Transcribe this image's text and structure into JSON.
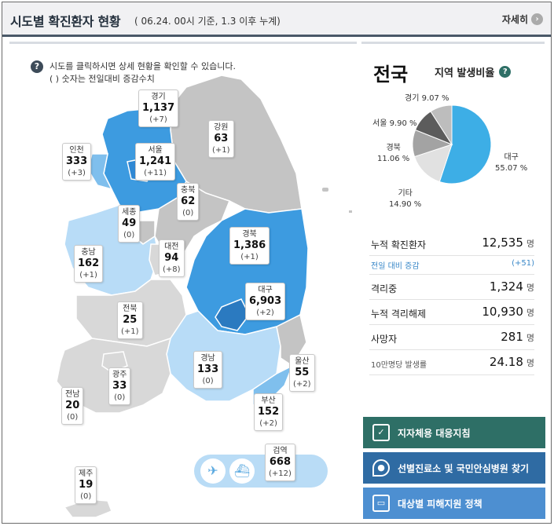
{
  "header": {
    "title": "시도별 확진환자 현황",
    "subtitle": "( 06.24. 00시 기준, 1.3 이후 누계)",
    "more_label": "자세히",
    "more_icon": "chevron-right-icon"
  },
  "info": {
    "line1": "시도를 클릭하시면 상세 현황을 확인할 수 있습니다.",
    "line2": "( ) 숫자는 전일대비 증감수치"
  },
  "regions": [
    {
      "name": "경기",
      "count": "1,137",
      "delta": "(+7)"
    },
    {
      "name": "강원",
      "count": "63",
      "delta": "(+1)"
    },
    {
      "name": "인천",
      "count": "333",
      "delta": "(+3)"
    },
    {
      "name": "서울",
      "count": "1,241",
      "delta": "(+11)"
    },
    {
      "name": "충북",
      "count": "62",
      "delta": "(0)"
    },
    {
      "name": "세종",
      "count": "49",
      "delta": "(0)"
    },
    {
      "name": "충남",
      "count": "162",
      "delta": "(+1)"
    },
    {
      "name": "대전",
      "count": "94",
      "delta": "(+8)"
    },
    {
      "name": "경북",
      "count": "1,386",
      "delta": "(+1)"
    },
    {
      "name": "대구",
      "count": "6,903",
      "delta": "(+2)"
    },
    {
      "name": "전북",
      "count": "25",
      "delta": "(+1)"
    },
    {
      "name": "경남",
      "count": "133",
      "delta": "(0)"
    },
    {
      "name": "울산",
      "count": "55",
      "delta": "(+2)"
    },
    {
      "name": "광주",
      "count": "33",
      "delta": "(0)"
    },
    {
      "name": "전남",
      "count": "20",
      "delta": "(0)"
    },
    {
      "name": "부산",
      "count": "152",
      "delta": "(+2)"
    },
    {
      "name": "검역",
      "count": "668",
      "delta": "(+12)"
    },
    {
      "name": "제주",
      "count": "19",
      "delta": "(0)"
    }
  ],
  "quarantine_icons": [
    "airplane-icon",
    "ship-icon"
  ],
  "summary": {
    "title": "전국",
    "ratio_label": "지역 발생비율",
    "pie": [
      {
        "label": "대구",
        "pct": "55.07 %",
        "value": 55.07,
        "color": "#3daee6"
      },
      {
        "label": "기타",
        "pct": "14.90 %",
        "value": 14.9,
        "color": "#e1e1e1"
      },
      {
        "label": "경북",
        "pct": "11.06 %",
        "value": 11.06,
        "color": "#a3a3a3"
      },
      {
        "label": "서울",
        "pct": "9.90 %",
        "value": 9.9,
        "color": "#5c5c5c"
      },
      {
        "label": "경기",
        "pct": "9.07 %",
        "value": 9.07,
        "color": "#bdbdbd"
      }
    ],
    "stats": [
      {
        "label": "누적 확진환자",
        "value": "12,535",
        "unit": "명"
      },
      {
        "label": "전일 대비 증감",
        "value": "(+51)",
        "unit": ""
      },
      {
        "label": "격리중",
        "value": "1,324",
        "unit": "명"
      },
      {
        "label": "누적 격리해제",
        "value": "10,930",
        "unit": "명"
      },
      {
        "label": "사망자",
        "value": "281",
        "unit": "명"
      },
      {
        "label": "10만명당 발생률",
        "value": "24.18",
        "unit": "명"
      }
    ]
  },
  "buttons": [
    {
      "label": "지자체용 대응지침",
      "icon": "checklist-icon",
      "color": "#2e6f66"
    },
    {
      "label": "선별진료소 및 국민안심병원 찾기",
      "icon": "location-pin-icon",
      "color": "#2f6ba3"
    },
    {
      "label": "대상별 피해지원 정책",
      "icon": "folder-icon",
      "color": "#4d8fd1"
    }
  ]
}
